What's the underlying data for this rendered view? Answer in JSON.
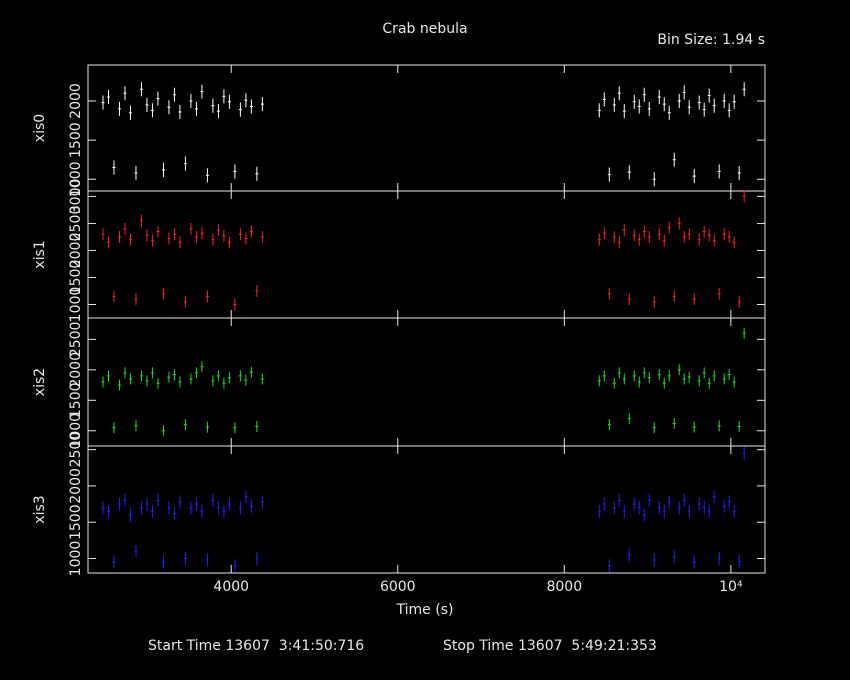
{
  "chart_data": {
    "type": "errorbar",
    "title": "Crab nebula",
    "subtitle": "Bin Size: 1.94 s",
    "x_label": "Time (s)",
    "start_time": "Start Time 13607  3:41:50:716",
    "stop_time": "Stop Time 13607  5:49:21:353",
    "xlim": [
      2280,
      10410
    ],
    "xticks": [
      4000,
      6000,
      8000,
      {
        "value": 10000,
        "label": "10⁴"
      }
    ],
    "x": [
      2460,
      2526,
      2592,
      2658,
      2724,
      2790,
      2856,
      2922,
      2988,
      3054,
      3120,
      3186,
      3252,
      3318,
      3384,
      3450,
      3516,
      3582,
      3648,
      3714,
      3780,
      3846,
      3912,
      3978,
      4044,
      4110,
      4176,
      4242,
      4308,
      4374,
      8420,
      8480,
      8540,
      8600,
      8660,
      8720,
      8780,
      8840,
      8900,
      8960,
      9020,
      9080,
      9140,
      9200,
      9260,
      9320,
      9380,
      9440,
      9500,
      9560,
      9620,
      9680,
      9740,
      9800,
      9860,
      9920,
      9980,
      10040,
      10100,
      10160
    ],
    "series": [
      {
        "name": "xis0",
        "color": "#ffffff",
        "error": 90,
        "ylim": [
          850,
          2460
        ],
        "yticks": [
          1000,
          1500,
          2000
        ],
        "values": [
          1980,
          2050,
          1150,
          1900,
          2100,
          1850,
          1080,
          2150,
          1950,
          1880,
          2030,
          1120,
          1920,
          2080,
          1860,
          1200,
          2000,
          1900,
          2120,
          1050,
          1940,
          1870,
          2060,
          1990,
          1100,
          1890,
          2010,
          1930,
          1070,
          1960,
          1880,
          2020,
          1060,
          1950,
          2100,
          1870,
          1090,
          1990,
          1930,
          2080,
          1900,
          1000,
          2050,
          1960,
          1850,
          1250,
          2000,
          2110,
          1920,
          1040,
          1980,
          1890,
          2070,
          1940,
          1100,
          2000,
          1880,
          1990,
          1080,
          2150
        ]
      },
      {
        "name": "xis1",
        "color": "#ff2020",
        "error": 110,
        "ylim": [
          750,
          3100
        ],
        "yticks": [
          1000,
          1500,
          2000,
          2500,
          3000
        ],
        "values": [
          2300,
          2150,
          1150,
          2250,
          2400,
          2200,
          1100,
          2550,
          2280,
          2180,
          2350,
          1200,
          2220,
          2300,
          2150,
          1050,
          2400,
          2250,
          2320,
          1150,
          2200,
          2380,
          2270,
          2150,
          1000,
          2300,
          2220,
          2350,
          1250,
          2250,
          2200,
          2320,
          1200,
          2250,
          2150,
          2380,
          1100,
          2280,
          2200,
          2350,
          2250,
          1050,
          2300,
          2180,
          2420,
          1150,
          2500,
          2250,
          2300,
          1100,
          2200,
          2350,
          2280,
          2180,
          1200,
          2300,
          2250,
          2150,
          1050,
          3000
        ]
      },
      {
        "name": "xis2",
        "color": "#20e020",
        "error": 90,
        "ylim": [
          750,
          2850
        ],
        "yticks": [
          1000,
          1500,
          2000,
          2500
        ],
        "values": [
          1800,
          1900,
          1050,
          1750,
          1950,
          1850,
          1080,
          1900,
          1820,
          1950,
          1780,
          1000,
          1880,
          1920,
          1800,
          1100,
          1850,
          1950,
          2050,
          1060,
          1820,
          1900,
          1780,
          1870,
          1050,
          1900,
          1830,
          1960,
          1070,
          1850,
          1820,
          1900,
          1100,
          1780,
          1950,
          1850,
          1200,
          1900,
          1800,
          1950,
          1870,
          1050,
          1920,
          1780,
          1900,
          1120,
          2000,
          1850,
          1880,
          1060,
          1820,
          1950,
          1780,
          1900,
          1080,
          1850,
          1920,
          1800,
          1070,
          2600
        ]
      },
      {
        "name": "xis3",
        "color": "#2020ff",
        "error": 90,
        "ylim": [
          800,
          2550
        ],
        "yticks": [
          1000,
          1500,
          2000,
          2500
        ],
        "values": [
          1700,
          1650,
          950,
          1750,
          1800,
          1600,
          1100,
          1700,
          1750,
          1650,
          1800,
          950,
          1700,
          1620,
          1780,
          1000,
          1700,
          1750,
          1650,
          980,
          1800,
          1700,
          1650,
          1750,
          900,
          1700,
          1850,
          1720,
          1000,
          1780,
          1650,
          1750,
          900,
          1700,
          1800,
          1650,
          1050,
          1750,
          1700,
          1600,
          1800,
          980,
          1700,
          1650,
          1780,
          1020,
          1700,
          1800,
          1650,
          950,
          1750,
          1700,
          1650,
          1850,
          1000,
          1720,
          1780,
          1650,
          960,
          2450
        ]
      }
    ]
  }
}
